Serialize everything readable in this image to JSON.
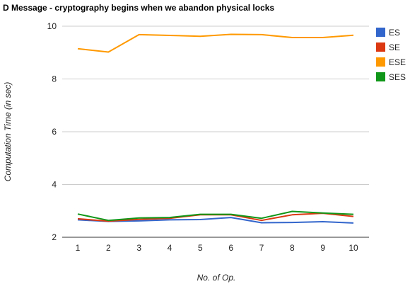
{
  "chart_data": {
    "type": "line",
    "title": "D Message - cryptography begins when we abandon physical locks",
    "xlabel": "No. of Op.",
    "ylabel": "Computation Time (in sec)",
    "x": [
      1,
      2,
      3,
      4,
      5,
      6,
      7,
      8,
      9,
      10
    ],
    "x_tick_labels": [
      "1",
      "2",
      "3",
      "4",
      "5",
      "6",
      "7",
      "8",
      "9",
      "10"
    ],
    "ylim": [
      2,
      10
    ],
    "y_ticks": [
      2,
      4,
      6,
      8,
      10
    ],
    "y_tick_labels": [
      "2",
      "4",
      "6",
      "8",
      "10"
    ],
    "grid": "horizontal",
    "legend": "right",
    "series": [
      {
        "name": "ES",
        "color": "#3366cc",
        "values": [
          2.66,
          2.6,
          2.62,
          2.66,
          2.67,
          2.75,
          2.55,
          2.56,
          2.59,
          2.54
        ]
      },
      {
        "name": "SE",
        "color": "#dc3912",
        "values": [
          2.7,
          2.61,
          2.68,
          2.72,
          2.85,
          2.85,
          2.64,
          2.85,
          2.91,
          2.79
        ]
      },
      {
        "name": "ESE",
        "color": "#ff9900",
        "values": [
          9.15,
          9.02,
          9.68,
          9.65,
          9.62,
          9.69,
          9.68,
          9.57,
          9.57,
          9.66
        ]
      },
      {
        "name": "SES",
        "color": "#109618",
        "values": [
          2.88,
          2.64,
          2.73,
          2.75,
          2.87,
          2.87,
          2.72,
          2.98,
          2.92,
          2.87
        ]
      }
    ]
  }
}
